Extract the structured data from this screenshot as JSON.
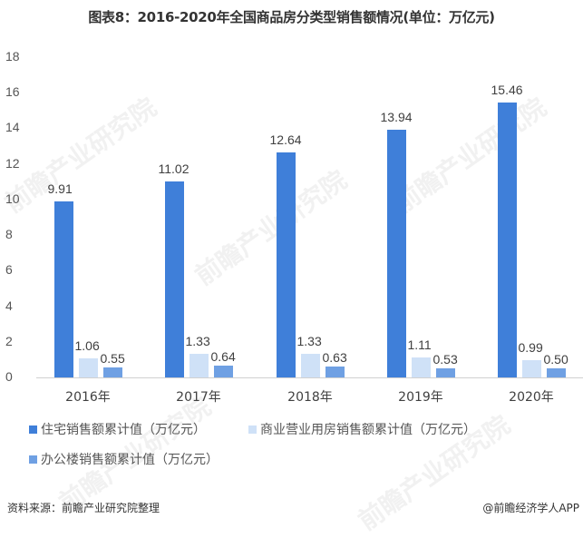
{
  "title": "图表8：2016-2020年全国商品房分类型销售额情况(单位：万亿元)",
  "chart_data": {
    "type": "bar",
    "title": "图表8：2016-2020年全国商品房分类型销售额情况(单位：万亿元)",
    "categories": [
      "2016年",
      "2017年",
      "2018年",
      "2019年",
      "2020年"
    ],
    "series": [
      {
        "name": "住宅销售额累计值（万亿元）",
        "color": "#3F7FD9",
        "values": [
          9.91,
          11.02,
          12.64,
          13.94,
          15.46
        ],
        "labels": [
          "9.91",
          "11.02",
          "12.64",
          "13.94",
          "15.46"
        ]
      },
      {
        "name": "商业营业用房销售额累计值（万亿元）",
        "color": "#CFE1F7",
        "values": [
          1.06,
          1.33,
          1.33,
          1.11,
          0.99
        ],
        "labels": [
          "1.06",
          "1.33",
          "1.33",
          "1.11",
          "0.99"
        ]
      },
      {
        "name": "办公楼销售额累计值（万亿元）",
        "color": "#6FA0E3",
        "values": [
          0.55,
          0.64,
          0.63,
          0.53,
          0.5
        ],
        "labels": [
          "0.55",
          "0.64",
          "0.63",
          "0.53",
          "0.50"
        ]
      }
    ],
    "xlabel": "",
    "ylabel": "",
    "ylim": [
      0,
      18
    ],
    "yticks": [
      "0",
      "2",
      "4",
      "6",
      "8",
      "10",
      "12",
      "14",
      "16",
      "18"
    ],
    "grid": false,
    "legend_position": "bottom"
  },
  "legend": {
    "items": [
      {
        "label": "住宅销售额累计值（万亿元）",
        "color": "#3F7FD9"
      },
      {
        "label": "商业营业用房销售额累计值（万亿元）",
        "color": "#CFE1F7"
      },
      {
        "label": "办公楼销售额累计值（万亿元）",
        "color": "#6FA0E3"
      }
    ]
  },
  "footer": {
    "source": "资料来源：前瞻产业研究院整理",
    "credit": "@前瞻经济学人APP"
  },
  "watermark": "前瞻产业研究院"
}
